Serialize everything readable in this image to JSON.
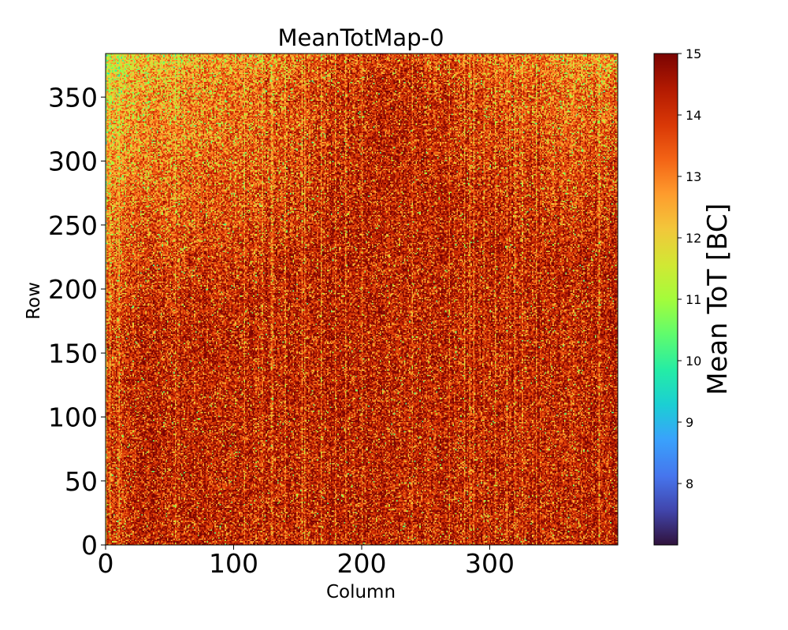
{
  "chart_data": {
    "type": "heatmap",
    "title": "MeanTotMap-0",
    "xlabel": "Column",
    "ylabel": "Row",
    "xlim": [
      0,
      400
    ],
    "ylim": [
      0,
      384
    ],
    "x_ticks": [
      0,
      100,
      200,
      300
    ],
    "y_ticks": [
      0,
      50,
      100,
      150,
      200,
      250,
      300,
      350
    ],
    "grid": false,
    "colorbar": {
      "label": "Mean ToT [BC]",
      "range": [
        7,
        15
      ],
      "ticks": [
        8,
        9,
        10,
        11,
        12,
        13,
        14,
        15
      ],
      "colormap": "turbo"
    },
    "value_distribution": {
      "typical_range": [
        12,
        15
      ],
      "dominant_value": 14.5,
      "sparse_low_values": [
        10,
        11
      ],
      "brighter_corners": [
        "top-left",
        "top-right"
      ]
    }
  }
}
